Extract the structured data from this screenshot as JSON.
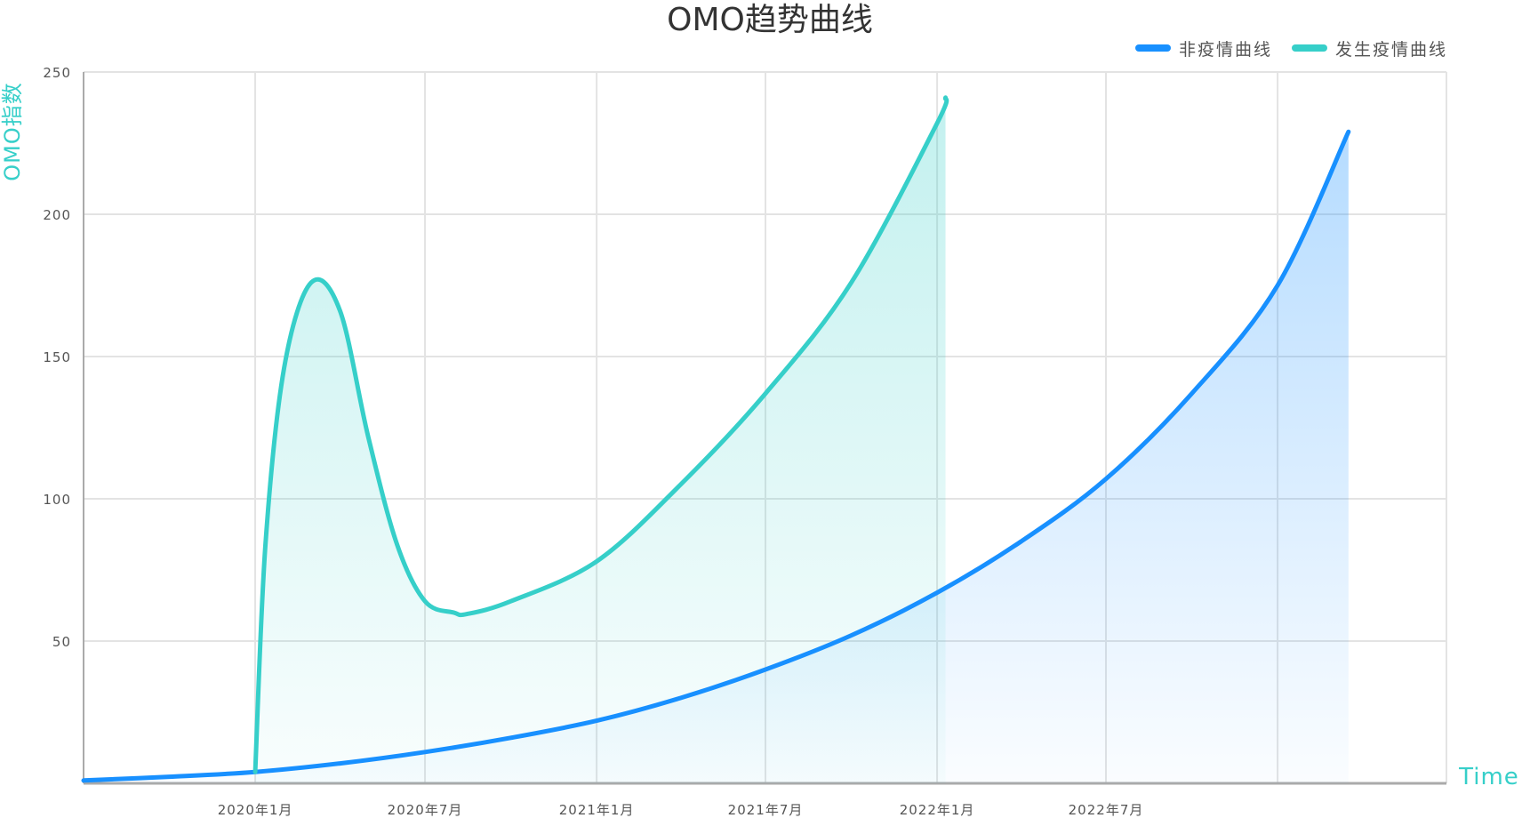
{
  "chart_data": {
    "type": "area",
    "title": "OMO趋势曲线",
    "ylabel": "OMO指数",
    "xlabel": "Time",
    "ylim": [
      0,
      250
    ],
    "yticks": [
      50,
      100,
      150,
      200,
      250
    ],
    "xlim": [
      "2019-07-01",
      "2023-07-01"
    ],
    "xticks": [
      {
        "date": "2020-01-01",
        "label": "2020年1月"
      },
      {
        "date": "2020-07-01",
        "label": "2020年7月"
      },
      {
        "date": "2021-01-01",
        "label": "2021年1月"
      },
      {
        "date": "2021-07-01",
        "label": "2021年7月"
      },
      {
        "date": "2022-01-01",
        "label": "2022年1月"
      },
      {
        "date": "2022-07-01",
        "label": "2022年7月"
      },
      {
        "date": "2023-01-01",
        "label": ""
      }
    ],
    "grid": true,
    "legend_position": "top-right",
    "series": [
      {
        "name": "非疫情曲线",
        "color": "#1890ff",
        "points": [
          [
            "2019-07-01",
            1
          ],
          [
            "2019-10-01",
            2.3
          ],
          [
            "2020-01-01",
            4
          ],
          [
            "2020-04-01",
            7
          ],
          [
            "2020-07-01",
            11
          ],
          [
            "2020-10-01",
            16
          ],
          [
            "2021-01-01",
            22
          ],
          [
            "2021-04-01",
            30
          ],
          [
            "2021-07-01",
            40
          ],
          [
            "2021-10-01",
            52
          ],
          [
            "2022-01-01",
            67
          ],
          [
            "2022-04-01",
            85
          ],
          [
            "2022-07-01",
            107
          ],
          [
            "2022-10-01",
            137
          ],
          [
            "2023-01-01",
            175
          ],
          [
            "2023-03-18",
            229
          ]
        ]
      },
      {
        "name": "发生疫情曲线",
        "color": "#36cfc9",
        "points": [
          [
            "2020-01-01",
            4
          ],
          [
            "2020-01-12",
            84
          ],
          [
            "2020-02-01",
            146
          ],
          [
            "2020-03-01",
            176
          ],
          [
            "2020-04-01",
            166
          ],
          [
            "2020-05-01",
            122
          ],
          [
            "2020-06-01",
            84
          ],
          [
            "2020-07-01",
            64
          ],
          [
            "2020-08-01",
            60
          ],
          [
            "2020-08-15",
            59.5
          ],
          [
            "2020-10-01",
            64
          ],
          [
            "2021-01-01",
            78
          ],
          [
            "2021-04-01",
            105
          ],
          [
            "2021-07-01",
            137
          ],
          [
            "2021-10-01",
            176
          ],
          [
            "2022-01-01",
            232
          ],
          [
            "2022-01-10",
            241
          ]
        ]
      }
    ]
  }
}
